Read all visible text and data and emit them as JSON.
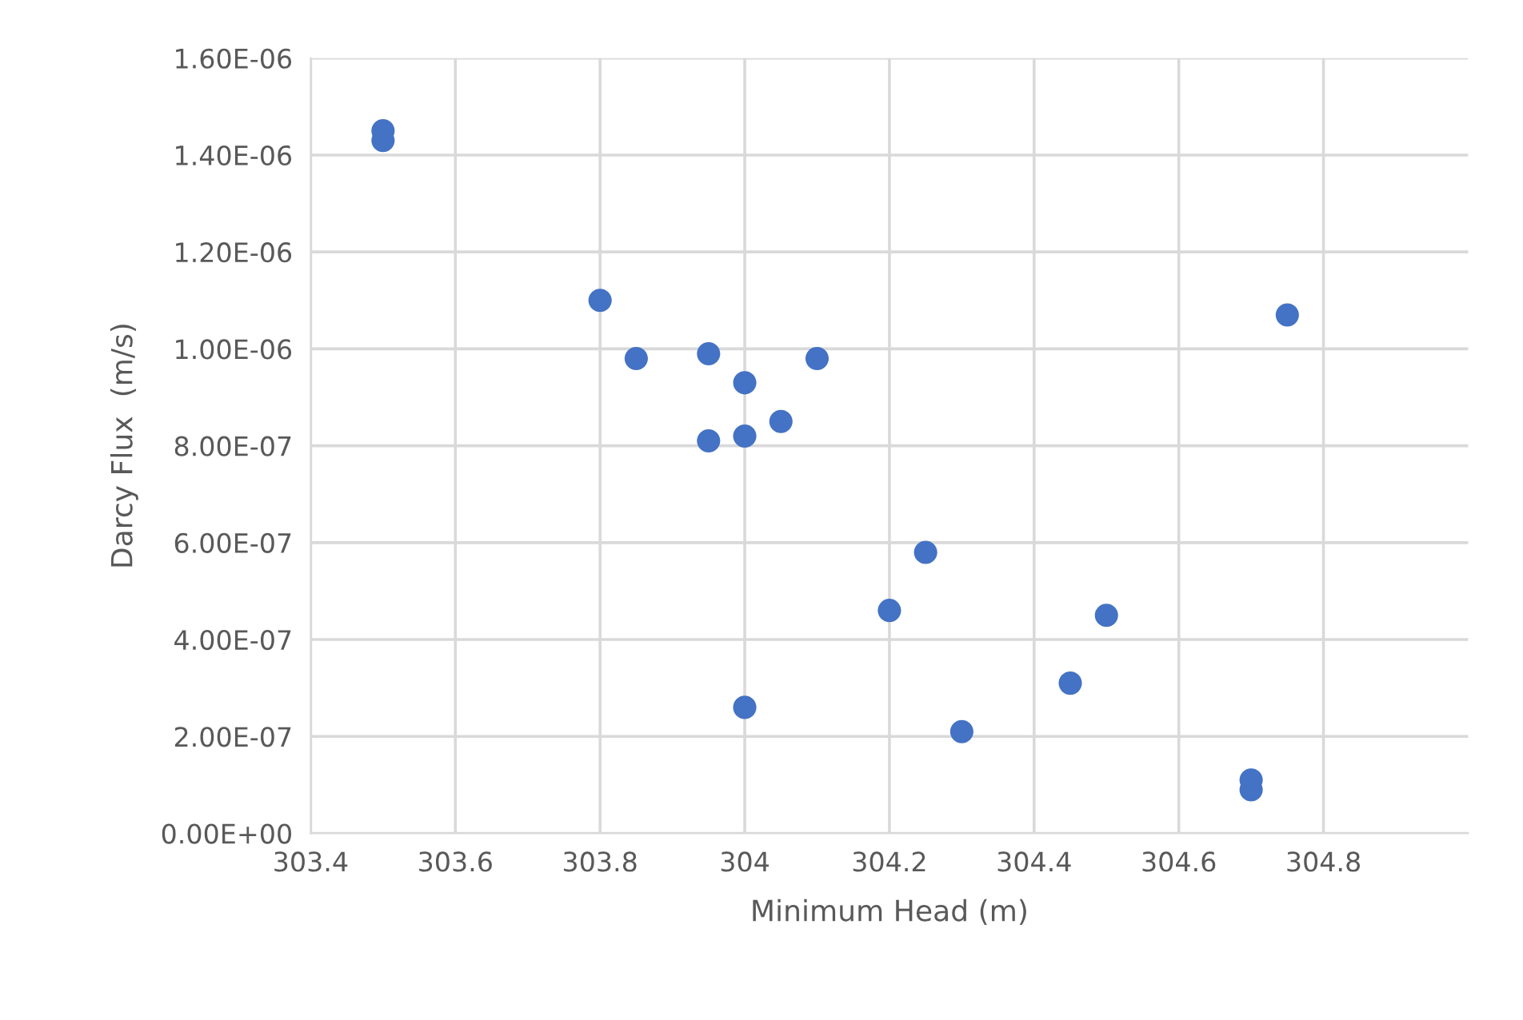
{
  "chart_data": {
    "type": "scatter",
    "xlabel": "Minimum Head (m)",
    "ylabel": "Darcy Flux  (m/s)",
    "series": [
      {
        "color": "#4472c4",
        "x": [
          303.5,
          303.5,
          303.8,
          303.85,
          303.95,
          304.0,
          304.1,
          304.0,
          303.95,
          304.05,
          304.25,
          304.2,
          304.5,
          304.45,
          304.0,
          304.3,
          304.7,
          304.7,
          304.75
        ],
        "values": [
          1.45e-06,
          1.43e-06,
          1.1e-06,
          9.8e-07,
          9.9e-07,
          9.3e-07,
          9.8e-07,
          8.2e-07,
          8.1e-07,
          8.5e-07,
          5.8e-07,
          4.6e-07,
          4.5e-07,
          3.1e-07,
          2.6e-07,
          2.1e-07,
          1.1e-07,
          9e-08,
          1.07e-06
        ]
      }
    ],
    "xlim": [
      303.4,
      305.0
    ],
    "xticks": [
      303.4,
      303.6,
      303.8,
      304,
      304.2,
      304.4,
      304.6,
      304.8
    ],
    "ylim": [
      0,
      1.6e-06
    ],
    "yticks": [
      {
        "value": 0,
        "label": "0.00E+00"
      },
      {
        "value": 2e-07,
        "label": "2.00E-07"
      },
      {
        "value": 4e-07,
        "label": "4.00E-07"
      },
      {
        "value": 6e-07,
        "label": "6.00E-07"
      },
      {
        "value": 8e-07,
        "label": "8.00E-07"
      },
      {
        "value": 1e-06,
        "label": "1.00E-06"
      },
      {
        "value": 1.2e-06,
        "label": "1.20E-06"
      },
      {
        "value": 1.4e-06,
        "label": "1.40E-06"
      },
      {
        "value": 1.6e-06,
        "label": "1.60E-06"
      }
    ],
    "grid": true,
    "marker": "circle"
  }
}
